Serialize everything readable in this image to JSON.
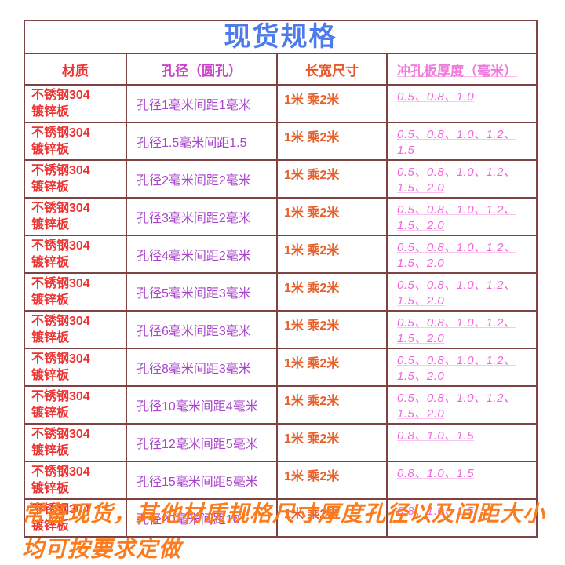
{
  "page": {
    "title": "现货规格",
    "footer_line1": "常备现货，其他材质规格尺寸厚度孔径以及间距大小",
    "footer_line2": "均可按要求定做"
  },
  "table": {
    "headers": {
      "material": "材质",
      "hole": "孔径（圆孔）",
      "size": "长宽尺寸",
      "thickness": "冲孔板厚度（毫米）"
    },
    "rows": [
      {
        "material": "不锈钢304\n镀锌板",
        "hole": "孔径1毫米间距1毫米",
        "size": "1米 乘2米",
        "thickness": "0.5、0.8、1.0"
      },
      {
        "material": "不锈钢304\n镀锌板",
        "hole": "孔径1.5毫米间距1.5",
        "size": "1米 乘2米",
        "thickness": "0.5、0.8、1.0、1.2、1.5"
      },
      {
        "material": "不锈钢304\n镀锌板",
        "hole": "孔径2毫米间距2毫米",
        "size": "1米 乘2米",
        "thickness": "0.5、0.8、1.0、1.2、1.5、2.0"
      },
      {
        "material": "不锈钢304\n镀锌板",
        "hole": "孔径3毫米间距2毫米",
        "size": "1米 乘2米",
        "thickness": "0.5、0.8、1.0、1.2、1.5、2.0"
      },
      {
        "material": "不锈钢304\n镀锌板",
        "hole": "孔径4毫米间距2毫米",
        "size": "1米 乘2米",
        "thickness": "0.5、0.8、1.0、1.2、1.5、2.0"
      },
      {
        "material": "不锈钢304\n镀锌板",
        "hole": "孔径5毫米间距3毫米",
        "size": "1米 乘2米",
        "thickness": "0.5、0.8、1.0、1.2、1.5、2.0"
      },
      {
        "material": "不锈钢304\n镀锌板",
        "hole": "孔径6毫米间距3毫米",
        "size": "1米 乘2米",
        "thickness": "0.5、0.8、1.0、1.2、1.5、2.0"
      },
      {
        "material": "不锈钢304\n镀锌板",
        "hole": "孔径8毫米间距3毫米",
        "size": "1米 乘2米",
        "thickness": "0.5、0.8、1.0、1.2、1.5、2.0"
      },
      {
        "material": "不锈钢304\n镀锌板",
        "hole": "孔径10毫米间距4毫米",
        "size": "1米 乘2米",
        "thickness": "0.5、0.8、1.0、1.2、1.5、2.0"
      },
      {
        "material": "不锈钢304\n镀锌板",
        "hole": "孔径12毫米间距5毫米",
        "size": "1米 乘2米",
        "thickness": "0.8、1.0、1.5"
      },
      {
        "material": "不锈钢304\n镀锌板",
        "hole": "孔径15毫米间距5毫米",
        "size": "1米 乘2米",
        "thickness": "0.8、1.0、1.5"
      },
      {
        "material": "不锈钢304\n镀锌板",
        "hole": "孔径20毫米间距10",
        "size": "1米 乘2米",
        "thickness": "0.8、1.0、1.5"
      }
    ]
  },
  "colors": {
    "title_blue": "#4c7beb",
    "header_red": "#ee3333",
    "header_magenta": "#cc44cc",
    "header_orange": "#e8562a",
    "header_pink": "#f07ade",
    "material_red": "#ee3333",
    "hole_purple": "#a843cb",
    "size_orange": "#e8602c",
    "thickness_pink": "#ee66dd",
    "table_border_maroon": "#7e4444",
    "footer_orange": "#fb7b1d",
    "background": "#ffffff"
  }
}
